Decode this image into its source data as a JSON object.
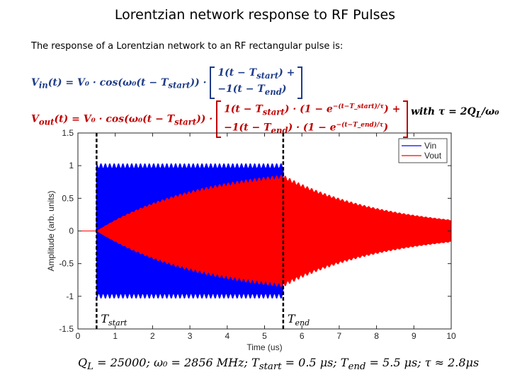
{
  "title": "Lorentzian network response to RF Pulses",
  "intro": "The response of a Lorentzian network to an RF rectangular pulse is:",
  "equations": {
    "vin_lhs": "V",
    "vin_lhs_sub": "in",
    "vin_rhs": "(t) = V₀ · cos(ω₀(t − T",
    "vin_rhs_sub": "start",
    "vin_rhs_end": ")) ·",
    "vin_row1": "1(t − T",
    "vin_row1_sub": "start",
    "vin_row1_end": ") +",
    "vin_row2": "−1(t − T",
    "vin_row2_sub": "end",
    "vin_row2_end": ")",
    "vout_lhs": "V",
    "vout_lhs_sub": "out",
    "vout_rhs": "(t) = V₀ · cos(ω₀(t − T",
    "vout_rhs_sub": "start",
    "vout_rhs_end": ")) ·",
    "vout_row1": "1(t − T",
    "vout_row1_sub": "start",
    "vout_row1_mid": ") · (1 − e",
    "vout_row1_sup": "−(t−T_start)/τ",
    "vout_row1_end": ") +",
    "vout_row2": "−1(t − T",
    "vout_row2_sub": "end",
    "vout_row2_mid": ") · (1 − e",
    "vout_row2_sup": "−(t−T_end)/τ",
    "vout_row2_end": ")",
    "with_tau": "with τ = 2Q",
    "with_tau_sub": "L",
    "with_tau_end": "/ω₀"
  },
  "footer": {
    "q_label": "Q",
    "q_sub": "L",
    "text": " = 25000; ω₀ = 2856 MHz; T",
    "tstart_sub": "start",
    "text2": " = 0.5 μs; T",
    "tend_sub": "end",
    "text3": " = 5.5 μs;  τ ≈ 2.8μs"
  },
  "colors": {
    "vin": "#0000ff",
    "vout": "#ff0000",
    "vin_equation": "#1f3c88",
    "vout_equation": "#c00000"
  },
  "chart_data": {
    "type": "line",
    "title": "",
    "xlabel": "Time (us)",
    "ylabel": "Amplitude (arb. units)",
    "xlim": [
      0,
      10
    ],
    "ylim": [
      -1.5,
      1.5
    ],
    "xticks": [
      0,
      1,
      2,
      3,
      4,
      5,
      6,
      7,
      8,
      9,
      10
    ],
    "yticks": [
      -1.5,
      -1,
      -0.5,
      0,
      0.5,
      1,
      1.5
    ],
    "ytick_labels": [
      "-1.5",
      "-1",
      "-0.5",
      "0",
      "0.5",
      "1",
      "1.5"
    ],
    "legend": {
      "placement": "top-right",
      "entries": [
        "Vin",
        "Vout"
      ]
    },
    "series": [
      {
        "name": "Vin",
        "color": "#0000ff",
        "envelope": "amplitude 1 between T_start and T_end, 0 elsewhere",
        "points": [
          [
            0,
            0
          ],
          [
            0.5,
            0
          ],
          [
            0.5,
            1
          ],
          [
            5.5,
            1
          ],
          [
            5.5,
            0
          ],
          [
            10,
            0
          ]
        ]
      },
      {
        "name": "Vout",
        "color": "#ff0000",
        "envelope": "rises as 1 - exp(-(t-T_start)/tau) after T_start, decays as exp(-(t-T_end)/tau) after T_end",
        "points": [
          [
            0.5,
            0
          ],
          [
            1,
            0.163
          ],
          [
            2,
            0.415
          ],
          [
            3,
            0.59
          ],
          [
            4,
            0.713
          ],
          [
            5,
            0.8
          ],
          [
            5.5,
            0.832
          ],
          [
            6,
            0.697
          ],
          [
            7,
            0.489
          ],
          [
            8,
            0.343
          ],
          [
            9,
            0.241
          ],
          [
            10,
            0.169
          ]
        ]
      }
    ],
    "markers": [
      {
        "label": "T",
        "label_sub": "start",
        "x": 0.5
      },
      {
        "label": "T",
        "label_sub": "end",
        "x": 5.5
      }
    ],
    "grid": false,
    "tau": 2.8,
    "t_start": 0.5,
    "t_end": 5.5
  }
}
